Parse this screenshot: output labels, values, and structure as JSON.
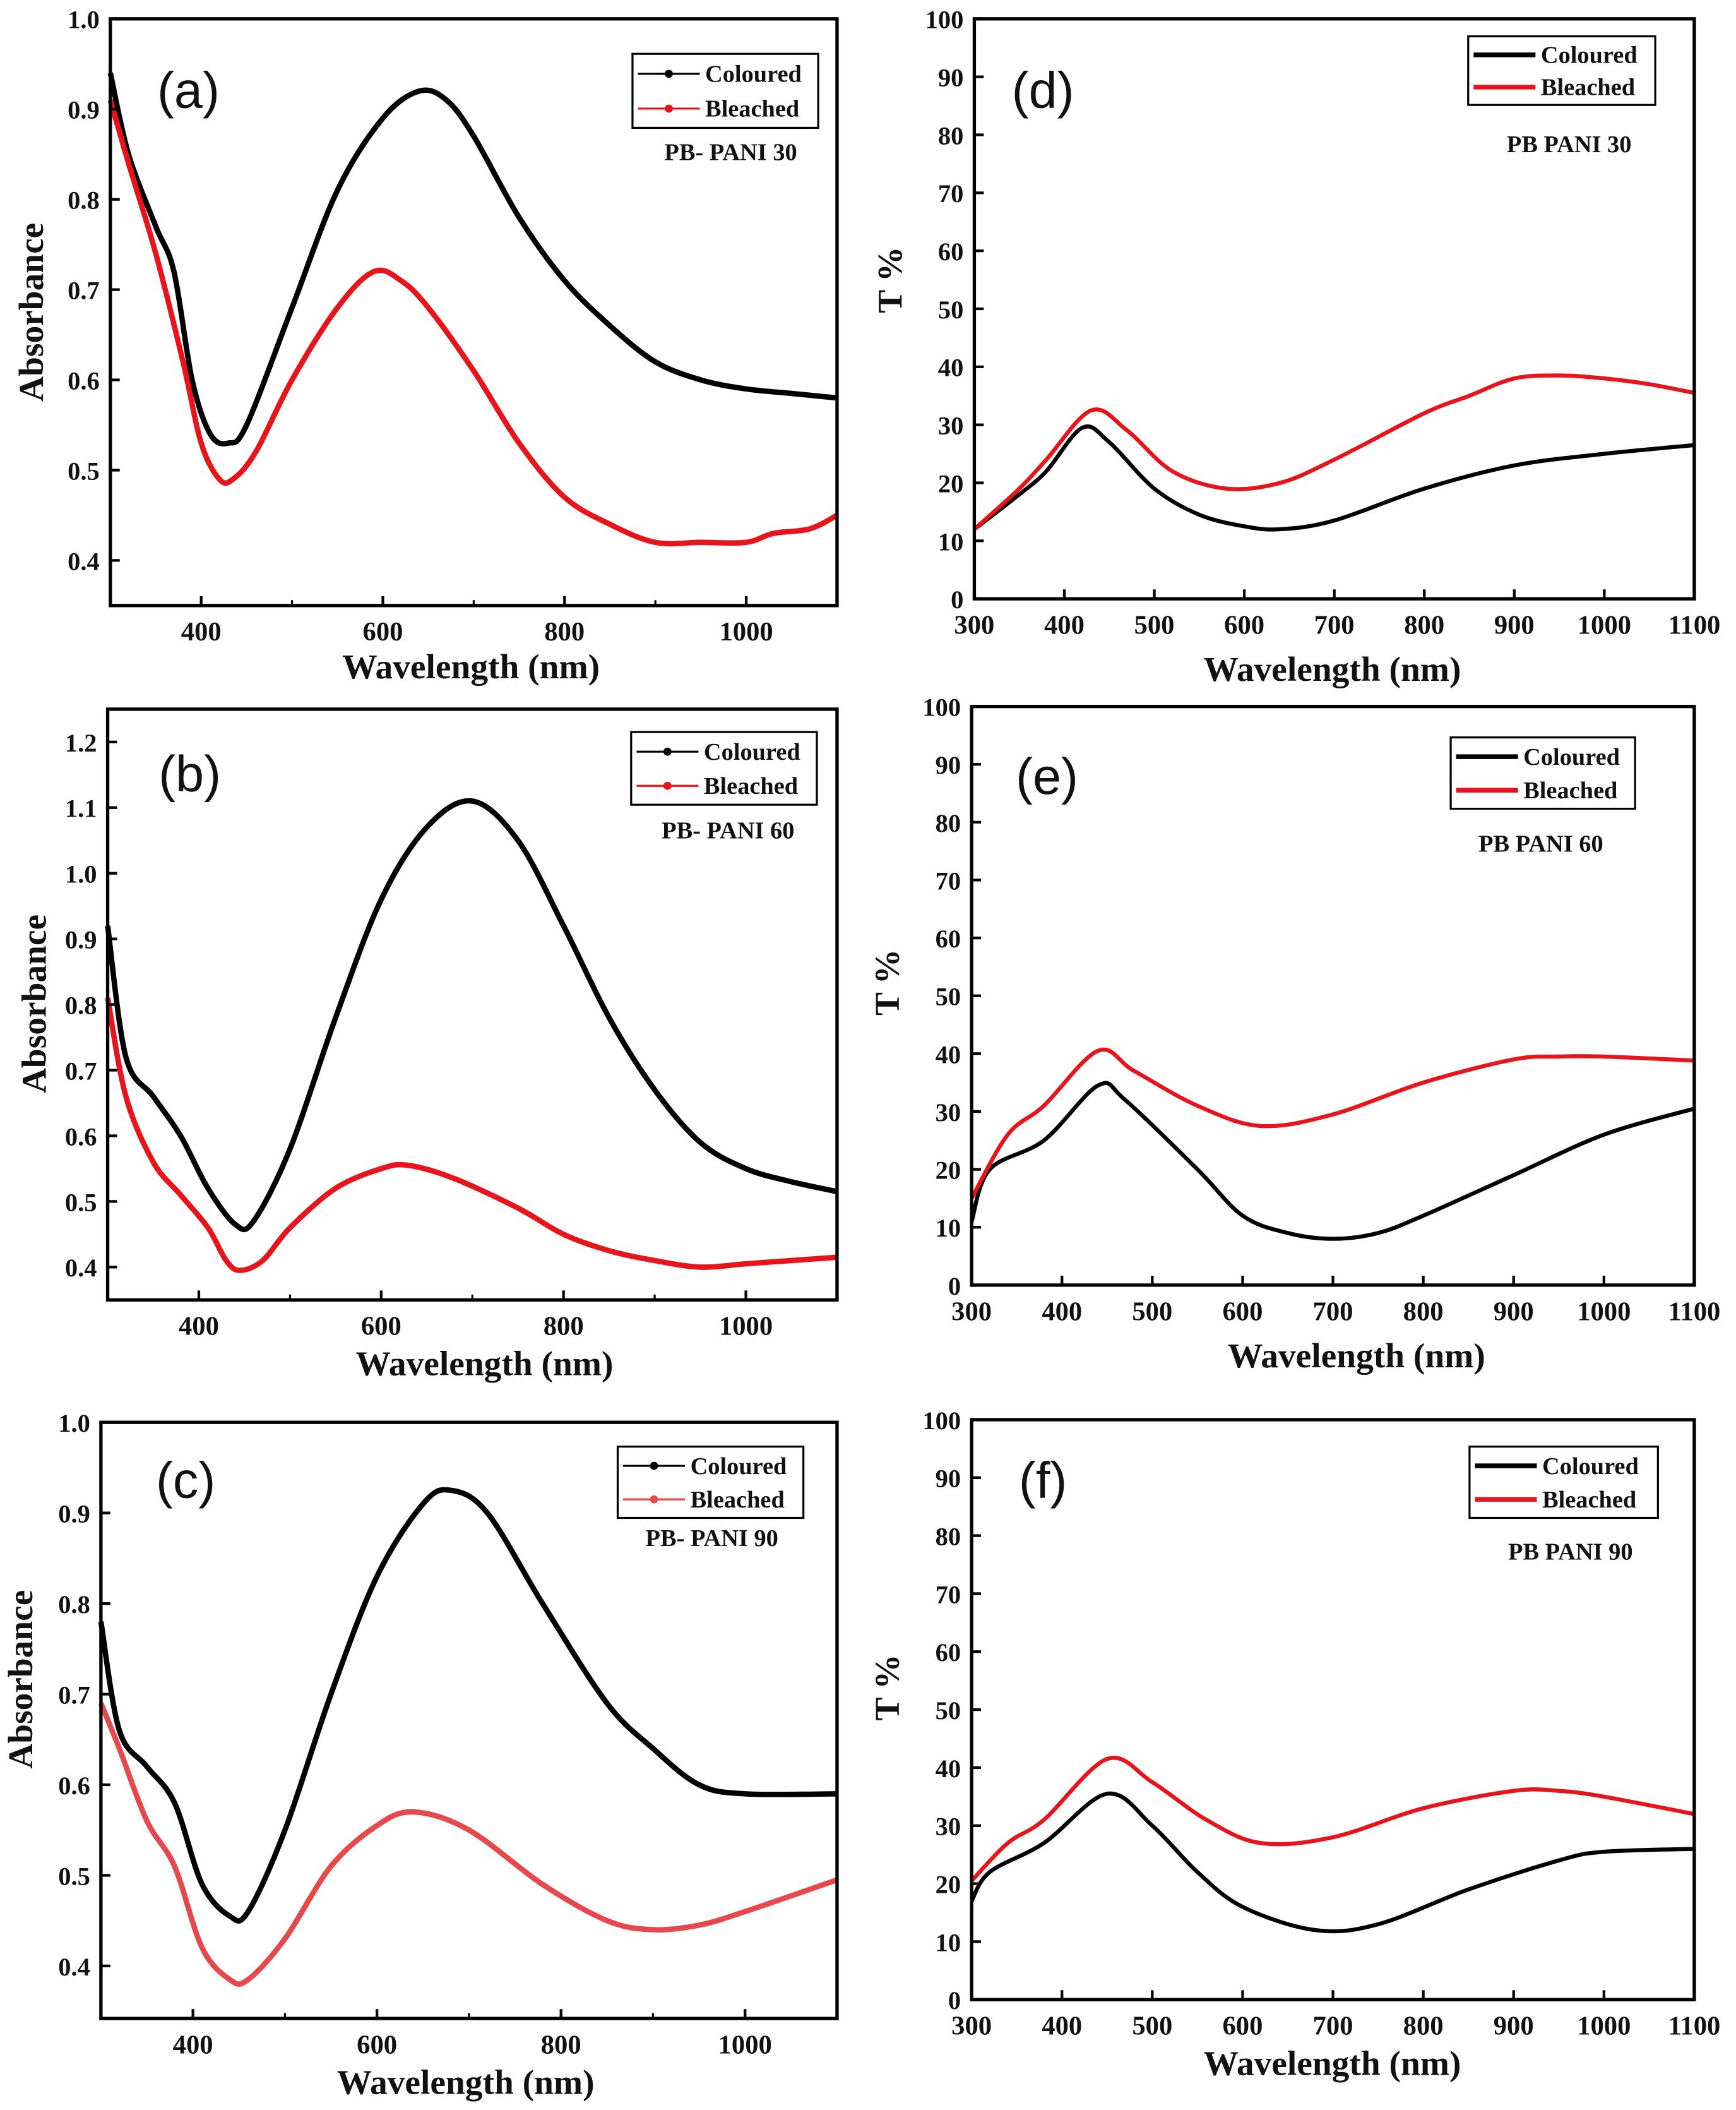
{
  "chart_data": [
    {
      "type": "line",
      "panel": "(a)",
      "sample": "PB- PANI 30",
      "xlabel": "Wavelength (nm)",
      "ylabel": "Absorbance",
      "xlim": [
        300,
        1100
      ],
      "ylim": [
        0.35,
        1.0
      ],
      "xticks": [
        400,
        600,
        800,
        1000
      ],
      "yticks": [
        0.4,
        0.5,
        0.6,
        0.7,
        0.8,
        0.9,
        1.0
      ],
      "ydec": 1,
      "legend": "top-right",
      "legend_style": "marker",
      "series": [
        {
          "name": "Coloured",
          "color": "#000000",
          "points": [
            [
              300,
              0.94
            ],
            [
              320,
              0.85
            ],
            [
              350,
              0.77
            ],
            [
              370,
              0.72
            ],
            [
              390,
              0.6
            ],
            [
              410,
              0.54
            ],
            [
              430,
              0.53
            ],
            [
              450,
              0.55
            ],
            [
              500,
              0.68
            ],
            [
              550,
              0.81
            ],
            [
              600,
              0.89
            ],
            [
              640,
              0.92
            ],
            [
              670,
              0.91
            ],
            [
              700,
              0.87
            ],
            [
              750,
              0.78
            ],
            [
              800,
              0.71
            ],
            [
              850,
              0.66
            ],
            [
              900,
              0.62
            ],
            [
              950,
              0.6
            ],
            [
              1000,
              0.59
            ],
            [
              1050,
              0.585
            ],
            [
              1100,
              0.58
            ]
          ]
        },
        {
          "name": "Bleached",
          "color": "#e8141b",
          "points": [
            [
              300,
              0.91
            ],
            [
              320,
              0.84
            ],
            [
              350,
              0.74
            ],
            [
              380,
              0.62
            ],
            [
              400,
              0.53
            ],
            [
              420,
              0.49
            ],
            [
              435,
              0.49
            ],
            [
              460,
              0.52
            ],
            [
              500,
              0.6
            ],
            [
              550,
              0.68
            ],
            [
              590,
              0.72
            ],
            [
              620,
              0.71
            ],
            [
              650,
              0.68
            ],
            [
              700,
              0.61
            ],
            [
              750,
              0.53
            ],
            [
              800,
              0.47
            ],
            [
              850,
              0.44
            ],
            [
              900,
              0.42
            ],
            [
              950,
              0.42
            ],
            [
              1000,
              0.42
            ],
            [
              1030,
              0.43
            ],
            [
              1070,
              0.435
            ],
            [
              1100,
              0.45
            ]
          ]
        }
      ]
    },
    {
      "type": "line",
      "panel": "(b)",
      "sample": "PB- PANI 60",
      "xlabel": "Wavelength (nm)",
      "ylabel": "Absorbance",
      "xlim": [
        300,
        1100
      ],
      "ylim": [
        0.35,
        1.25
      ],
      "xticks": [
        400,
        600,
        800,
        1000
      ],
      "yticks": [
        0.4,
        0.5,
        0.6,
        0.7,
        0.8,
        0.9,
        1.0,
        1.1,
        1.2
      ],
      "ydec": 1,
      "legend": "top-right",
      "legend_style": "marker",
      "series": [
        {
          "name": "Coloured",
          "color": "#000000",
          "points": [
            [
              300,
              0.92
            ],
            [
              320,
              0.72
            ],
            [
              350,
              0.66
            ],
            [
              380,
              0.6
            ],
            [
              410,
              0.52
            ],
            [
              440,
              0.465
            ],
            [
              460,
              0.47
            ],
            [
              500,
              0.58
            ],
            [
              550,
              0.78
            ],
            [
              600,
              0.96
            ],
            [
              650,
              1.07
            ],
            [
              700,
              1.11
            ],
            [
              750,
              1.05
            ],
            [
              800,
              0.92
            ],
            [
              850,
              0.78
            ],
            [
              900,
              0.67
            ],
            [
              950,
              0.59
            ],
            [
              1000,
              0.55
            ],
            [
              1050,
              0.53
            ],
            [
              1100,
              0.515
            ]
          ]
        },
        {
          "name": "Bleached",
          "color": "#e8141b",
          "points": [
            [
              300,
              0.81
            ],
            [
              320,
              0.66
            ],
            [
              350,
              0.56
            ],
            [
              380,
              0.51
            ],
            [
              410,
              0.46
            ],
            [
              430,
              0.41
            ],
            [
              445,
              0.395
            ],
            [
              470,
              0.41
            ],
            [
              500,
              0.46
            ],
            [
              550,
              0.52
            ],
            [
              600,
              0.55
            ],
            [
              630,
              0.555
            ],
            [
              680,
              0.535
            ],
            [
              750,
              0.49
            ],
            [
              800,
              0.45
            ],
            [
              850,
              0.425
            ],
            [
              900,
              0.41
            ],
            [
              950,
              0.4
            ],
            [
              1000,
              0.405
            ],
            [
              1050,
              0.41
            ],
            [
              1100,
              0.415
            ]
          ]
        }
      ]
    },
    {
      "type": "line",
      "panel": "(c)",
      "sample": "PB- PANI 90",
      "xlabel": "Wavelength (nm)",
      "ylabel": "Absorbance",
      "xlim": [
        300,
        1100
      ],
      "ylim": [
        0.342,
        1.0
      ],
      "xticks": [
        400,
        600,
        800,
        1000
      ],
      "yticks": [
        0.4,
        0.5,
        0.6,
        0.7,
        0.8,
        0.9,
        1.0
      ],
      "ydec": 1,
      "legend": "top-right",
      "legend_style": "marker",
      "series": [
        {
          "name": "Coloured",
          "color": "#000000",
          "points": [
            [
              300,
              0.78
            ],
            [
              320,
              0.66
            ],
            [
              350,
              0.62
            ],
            [
              380,
              0.58
            ],
            [
              410,
              0.49
            ],
            [
              440,
              0.455
            ],
            [
              460,
              0.46
            ],
            [
              500,
              0.55
            ],
            [
              550,
              0.7
            ],
            [
              600,
              0.83
            ],
            [
              650,
              0.91
            ],
            [
              680,
              0.925
            ],
            [
              720,
              0.9
            ],
            [
              780,
              0.8
            ],
            [
              850,
              0.69
            ],
            [
              900,
              0.64
            ],
            [
              950,
              0.6
            ],
            [
              1000,
              0.59
            ],
            [
              1100,
              0.59
            ]
          ]
        },
        {
          "name": "Bleached",
          "color": "#e5484d",
          "points": [
            [
              300,
              0.69
            ],
            [
              320,
              0.64
            ],
            [
              350,
              0.56
            ],
            [
              380,
              0.51
            ],
            [
              410,
              0.42
            ],
            [
              440,
              0.385
            ],
            [
              460,
              0.385
            ],
            [
              500,
              0.43
            ],
            [
              550,
              0.51
            ],
            [
              600,
              0.555
            ],
            [
              640,
              0.57
            ],
            [
              700,
              0.55
            ],
            [
              780,
              0.49
            ],
            [
              850,
              0.45
            ],
            [
              900,
              0.44
            ],
            [
              950,
              0.445
            ],
            [
              1000,
              0.46
            ],
            [
              1100,
              0.495
            ]
          ]
        }
      ]
    },
    {
      "type": "line",
      "panel": "(d)",
      "sample": "PB PANI 30",
      "xlabel": "Wavelength (nm)",
      "ylabel": "T %",
      "xlim": [
        300,
        1100
      ],
      "ylim": [
        0,
        100
      ],
      "xticks": [
        300,
        400,
        500,
        600,
        700,
        800,
        900,
        1000,
        1100
      ],
      "yticks": [
        0,
        10,
        20,
        30,
        40,
        50,
        60,
        70,
        80,
        90,
        100
      ],
      "ydec": 0,
      "legend": "top-right",
      "legend_style": "line",
      "series": [
        {
          "name": "Coloured",
          "color": "#000000",
          "points": [
            [
              300,
              12
            ],
            [
              350,
              18
            ],
            [
              380,
              22
            ],
            [
              420,
              29.5
            ],
            [
              450,
              27
            ],
            [
              500,
              19
            ],
            [
              550,
              14.5
            ],
            [
              600,
              12.5
            ],
            [
              640,
              12
            ],
            [
              700,
              13.5
            ],
            [
              800,
              19
            ],
            [
              900,
              23
            ],
            [
              1000,
              25
            ],
            [
              1100,
              26.5
            ]
          ]
        },
        {
          "name": "Bleached",
          "color": "#e8141b",
          "points": [
            [
              300,
              12
            ],
            [
              350,
              19
            ],
            [
              380,
              24
            ],
            [
              430,
              32.5
            ],
            [
              470,
              29
            ],
            [
              520,
              22
            ],
            [
              580,
              19
            ],
            [
              640,
              20
            ],
            [
              700,
              24
            ],
            [
              800,
              32
            ],
            [
              850,
              35
            ],
            [
              900,
              38
            ],
            [
              950,
              38.5
            ],
            [
              1000,
              38
            ],
            [
              1050,
              37
            ],
            [
              1100,
              35.5
            ]
          ]
        }
      ]
    },
    {
      "type": "line",
      "panel": "(e)",
      "sample": "PB PANI 60",
      "xlabel": "Wavelength (nm)",
      "ylabel": "T %",
      "xlim": [
        300,
        1100
      ],
      "ylim": [
        0,
        100
      ],
      "xticks": [
        300,
        400,
        500,
        600,
        700,
        800,
        900,
        1000,
        1100
      ],
      "yticks": [
        0,
        10,
        20,
        30,
        40,
        50,
        60,
        70,
        80,
        90,
        100
      ],
      "ydec": 0,
      "legend": "top-right",
      "legend_style": "line",
      "series": [
        {
          "name": "Coloured",
          "color": "#000000",
          "points": [
            [
              300,
              11
            ],
            [
              320,
              20
            ],
            [
              380,
              25
            ],
            [
              440,
              34.5
            ],
            [
              470,
              32
            ],
            [
              550,
              20
            ],
            [
              600,
              12
            ],
            [
              650,
              9
            ],
            [
              700,
              8
            ],
            [
              750,
              9
            ],
            [
              800,
              12
            ],
            [
              900,
              19
            ],
            [
              1000,
              26
            ],
            [
              1100,
              30.5
            ]
          ]
        },
        {
          "name": "Bleached",
          "color": "#e8141b",
          "points": [
            [
              300,
              15
            ],
            [
              340,
              26
            ],
            [
              380,
              31
            ],
            [
              440,
              40.5
            ],
            [
              480,
              37
            ],
            [
              550,
              31
            ],
            [
              620,
              27.5
            ],
            [
              700,
              29.5
            ],
            [
              800,
              35
            ],
            [
              900,
              39
            ],
            [
              950,
              39.5
            ],
            [
              1000,
              39.5
            ],
            [
              1100,
              38.8
            ]
          ]
        }
      ]
    },
    {
      "type": "line",
      "panel": "(f)",
      "sample": "PB PANI 90",
      "xlabel": "Wavelength (nm)",
      "ylabel": "T %",
      "xlim": [
        300,
        1100
      ],
      "ylim": [
        0,
        100
      ],
      "xticks": [
        300,
        400,
        500,
        600,
        700,
        800,
        900,
        1000,
        1100
      ],
      "yticks": [
        0,
        10,
        20,
        30,
        40,
        50,
        60,
        70,
        80,
        90,
        100
      ],
      "ydec": 0,
      "legend": "top-right",
      "legend_style": "line",
      "series": [
        {
          "name": "Coloured",
          "color": "#000000",
          "points": [
            [
              300,
              17
            ],
            [
              320,
              22
            ],
            [
              380,
              27
            ],
            [
              450,
              35.5
            ],
            [
              500,
              30
            ],
            [
              550,
              22
            ],
            [
              600,
              16
            ],
            [
              680,
              12
            ],
            [
              750,
              13
            ],
            [
              850,
              19
            ],
            [
              950,
              24
            ],
            [
              1000,
              25.5
            ],
            [
              1100,
              26
            ]
          ]
        },
        {
          "name": "Bleached",
          "color": "#e8141b",
          "points": [
            [
              300,
              20.5
            ],
            [
              340,
              27
            ],
            [
              380,
              31
            ],
            [
              450,
              41.5
            ],
            [
              500,
              37.5
            ],
            [
              560,
              31
            ],
            [
              620,
              27
            ],
            [
              700,
              28
            ],
            [
              800,
              33
            ],
            [
              900,
              36
            ],
            [
              950,
              36
            ],
            [
              1000,
              35
            ],
            [
              1100,
              32
            ]
          ]
        }
      ]
    }
  ]
}
